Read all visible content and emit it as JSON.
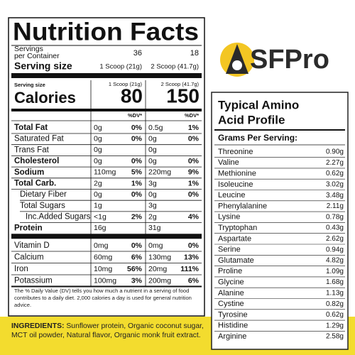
{
  "nutrition": {
    "title": "Nutrition Facts",
    "servings": {
      "label": [
        "Servings",
        "per Container"
      ],
      "values": [
        "36",
        "18"
      ]
    },
    "serving_size": {
      "label": "Serving size",
      "values": [
        "1 Scoop (21g)",
        "2 Scoop (41.7g)"
      ]
    },
    "calories": {
      "serving_label": "Serving size",
      "serving_values": [
        "1 Scoop (21g)",
        "2 Scoop (41.7g)"
      ],
      "label": "Calories",
      "values": [
        "80",
        "150"
      ],
      "dv_headers": [
        "%DV*",
        "%DV*"
      ]
    },
    "rows": [
      [
        "Total Fat",
        "0g",
        "0%",
        "0.5g",
        "1%"
      ],
      [
        "Saturated Fat",
        "0g",
        "0%",
        "0g",
        "0%"
      ],
      [
        "Trans Fat",
        "0g",
        null,
        "0g",
        null
      ],
      [
        "Cholesterol",
        "0g",
        "0%",
        "0g",
        "0%"
      ],
      [
        "Sodium",
        "110mg",
        "5%",
        "220mg",
        "9%"
      ],
      [
        "Total Carb.",
        "2g",
        "1%",
        "3g",
        "1%"
      ],
      [
        "Dietary Fiber",
        "0g",
        "0%",
        "0g",
        "0%"
      ],
      [
        "Total Sugars",
        "1g",
        null,
        "3g",
        null
      ],
      [
        "Inc.Added Sugars",
        "<1g",
        "2%",
        "2g",
        "4%"
      ],
      [
        "Protein",
        "16g",
        null,
        "31g",
        null
      ],
      [
        "Vitamin D",
        "0mg",
        "0%",
        "0mg",
        "0%"
      ],
      [
        "Calcium",
        "60mg",
        "6%",
        "130mg",
        "13%"
      ],
      [
        "Iron",
        "10mg",
        "56%",
        "20mg",
        "111%"
      ],
      [
        "Potassium",
        "100mg",
        "3%",
        "200mg",
        "6%"
      ]
    ],
    "footnote": "The % Daily Value (DV) tells you how much a nutrient in a serving of food contributes to a daily diet. 2,000 calories a day is used for general nutrition advice."
  },
  "ingredients": {
    "label": "INGREDIENTS:",
    "text": "Sunflower protein, Organic coconut sugar, MCT oil powder, Natural flavor, Organic monk fruit extract."
  },
  "logo": {
    "text": "SFPro"
  },
  "amino": {
    "title": [
      "Typical Amino",
      "Acid Profile"
    ],
    "header": "Grams Per Serving:",
    "rows": [
      [
        "Threonine",
        "0.90g"
      ],
      [
        "Valine",
        "2.27g"
      ],
      [
        "Methionine",
        "0.62g"
      ],
      [
        "Isoleucine",
        "3.02g"
      ],
      [
        "Leucine",
        "3.48g"
      ],
      [
        "Phenylalanine",
        "2.11g"
      ],
      [
        "Lysine",
        "0.78g"
      ],
      [
        "Tryptophan",
        "0.43g"
      ],
      [
        "Aspartate",
        "2.62g"
      ],
      [
        "Serine",
        "0.94g"
      ],
      [
        "Glutamate",
        "4.82g"
      ],
      [
        "Proline",
        "1.09g"
      ],
      [
        "Glycine",
        "1.68g"
      ],
      [
        "Alanine",
        "1.13g"
      ],
      [
        "Cystine",
        "0.82g"
      ],
      [
        "Tyrosine",
        "0.62g"
      ],
      [
        "Histidine",
        "1.29g"
      ],
      [
        "Arginine",
        "2.58g"
      ]
    ]
  }
}
